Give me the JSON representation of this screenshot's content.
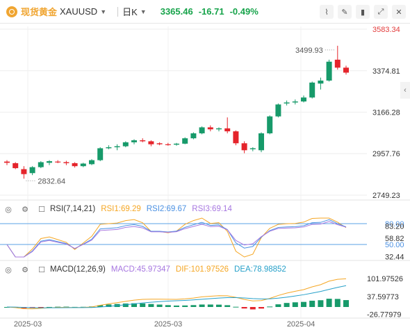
{
  "header": {
    "name": "现货黄金",
    "symbol": "XAUUSD",
    "period": "日K",
    "price": "3365.46",
    "change": "-16.71",
    "change_pct": "-0.49%",
    "icons": [
      "indicator-icon",
      "draw-icon",
      "candle-type-icon",
      "expand-icon",
      "close-icon"
    ]
  },
  "rsi": {
    "label": "RSI(7,14,21)",
    "rsi1": "RSI1:69.29",
    "rsi2": "RSI2:69.67",
    "rsi3": "RSI3:69.14",
    "colors": {
      "rsi1": "#f5a623",
      "rsi2": "#4a90e2",
      "rsi3": "#a777e0"
    },
    "axis_labels": [
      "80.00",
      "83.20",
      "58.82",
      "50.00",
      "32.44"
    ]
  },
  "macd": {
    "label": "MACD(12,26,9)",
    "macd": "MACD:45.97347",
    "dif": "DIF:101.97526",
    "dea": "DEA:78.98852",
    "colors": {
      "macd": "#a777e0",
      "dif": "#f5a623",
      "dea": "#26a0c9"
    },
    "axis_labels": [
      "101.97526",
      "37.59773",
      "-26.77979"
    ]
  },
  "chart_data": {
    "type": "candlestick",
    "title": "",
    "price_axis_labels": [
      "3583.34",
      "3374.81",
      "3166.28",
      "2957.76",
      "2749.23"
    ],
    "ylim": [
      2749.23,
      3583.34
    ],
    "x_labels": [
      "2025-03",
      "2025-03",
      "2025-04"
    ],
    "annotations": {
      "high": "3499.93",
      "low": "2832.64"
    },
    "candles": [
      {
        "o": 2918,
        "h": 2925,
        "l": 2900,
        "c": 2912
      },
      {
        "o": 2910,
        "h": 2915,
        "l": 2880,
        "c": 2885
      },
      {
        "o": 2880,
        "h": 2895,
        "l": 2832,
        "c": 2855
      },
      {
        "o": 2860,
        "h": 2895,
        "l": 2850,
        "c": 2890
      },
      {
        "o": 2890,
        "h": 2920,
        "l": 2885,
        "c": 2915
      },
      {
        "o": 2912,
        "h": 2925,
        "l": 2900,
        "c": 2920
      },
      {
        "o": 2918,
        "h": 2925,
        "l": 2910,
        "c": 2915
      },
      {
        "o": 2915,
        "h": 2922,
        "l": 2900,
        "c": 2910
      },
      {
        "o": 2910,
        "h": 2915,
        "l": 2888,
        "c": 2895
      },
      {
        "o": 2895,
        "h": 2912,
        "l": 2890,
        "c": 2908
      },
      {
        "o": 2905,
        "h": 2930,
        "l": 2900,
        "c": 2925
      },
      {
        "o": 2925,
        "h": 2990,
        "l": 2920,
        "c": 2985
      },
      {
        "o": 2985,
        "h": 3000,
        "l": 2980,
        "c": 2990
      },
      {
        "o": 2990,
        "h": 3005,
        "l": 2975,
        "c": 2995
      },
      {
        "o": 2995,
        "h": 3020,
        "l": 2990,
        "c": 3015
      },
      {
        "o": 3015,
        "h": 3030,
        "l": 3005,
        "c": 3025
      },
      {
        "o": 3025,
        "h": 3035,
        "l": 3015,
        "c": 3020
      },
      {
        "o": 3020,
        "h": 3025,
        "l": 2995,
        "c": 3005
      },
      {
        "o": 3010,
        "h": 3015,
        "l": 3000,
        "c": 3005
      },
      {
        "o": 3005,
        "h": 3012,
        "l": 2998,
        "c": 3003
      },
      {
        "o": 3003,
        "h": 3012,
        "l": 2998,
        "c": 3008
      },
      {
        "o": 3008,
        "h": 3040,
        "l": 3005,
        "c": 3035
      },
      {
        "o": 3035,
        "h": 3065,
        "l": 3030,
        "c": 3060
      },
      {
        "o": 3060,
        "h": 3095,
        "l": 3055,
        "c": 3090
      },
      {
        "o": 3090,
        "h": 3100,
        "l": 3070,
        "c": 3080
      },
      {
        "o": 3080,
        "h": 3090,
        "l": 3070,
        "c": 3085
      },
      {
        "o": 3085,
        "h": 3140,
        "l": 3060,
        "c": 3070
      },
      {
        "o": 3070,
        "h": 3075,
        "l": 3000,
        "c": 3010
      },
      {
        "o": 3010,
        "h": 3020,
        "l": 2960,
        "c": 2975
      },
      {
        "o": 2980,
        "h": 2990,
        "l": 2970,
        "c": 2985
      },
      {
        "o": 2975,
        "h": 3065,
        "l": 2965,
        "c": 3060
      },
      {
        "o": 3060,
        "h": 3150,
        "l": 3055,
        "c": 3145
      },
      {
        "o": 3145,
        "h": 3210,
        "l": 3140,
        "c": 3205
      },
      {
        "o": 3210,
        "h": 3225,
        "l": 3200,
        "c": 3215
      },
      {
        "o": 3215,
        "h": 3230,
        "l": 3205,
        "c": 3220
      },
      {
        "o": 3220,
        "h": 3250,
        "l": 3215,
        "c": 3240
      },
      {
        "o": 3240,
        "h": 3320,
        "l": 3235,
        "c": 3315
      },
      {
        "o": 3310,
        "h": 3340,
        "l": 3280,
        "c": 3325
      },
      {
        "o": 3325,
        "h": 3430,
        "l": 3320,
        "c": 3420
      },
      {
        "o": 3430,
        "h": 3500,
        "l": 3380,
        "c": 3390
      },
      {
        "o": 3390,
        "h": 3400,
        "l": 3355,
        "c": 3365
      }
    ]
  }
}
